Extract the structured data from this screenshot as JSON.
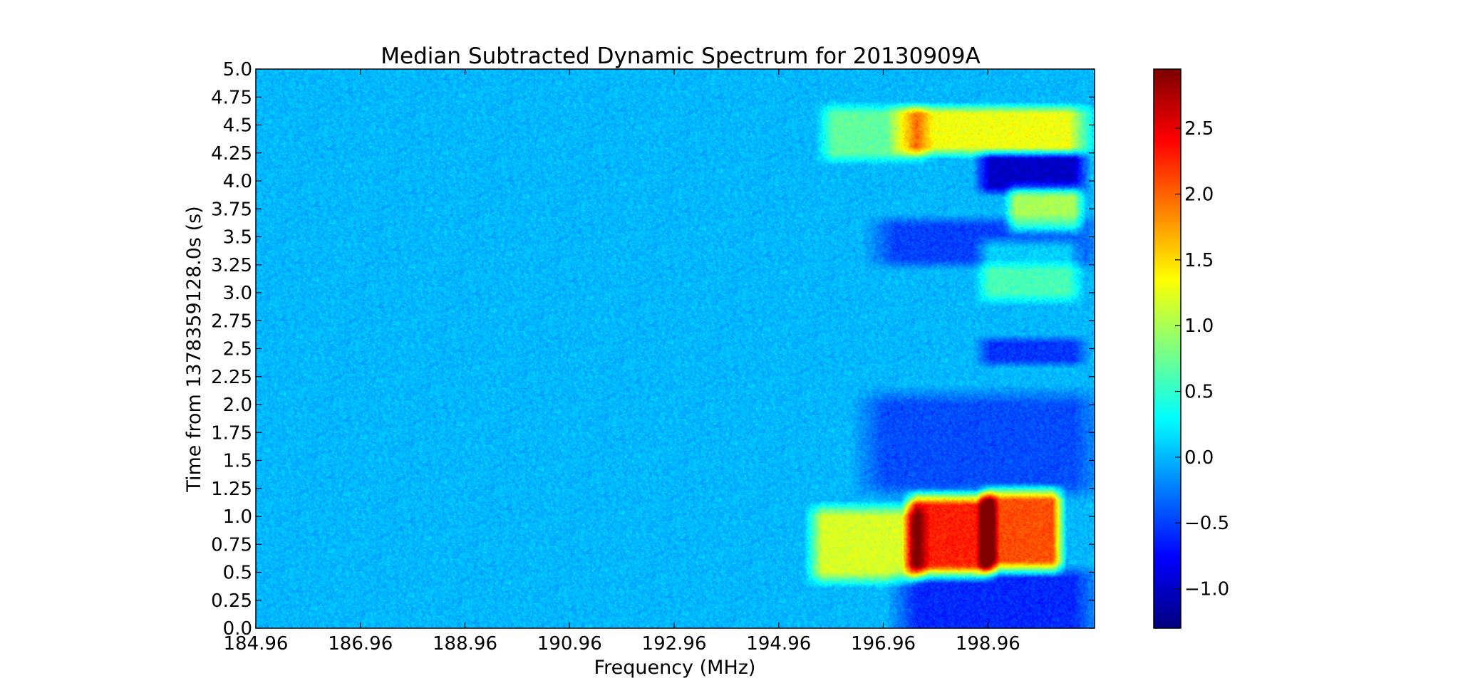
{
  "chart_data": {
    "type": "heatmap",
    "title": "Median Subtracted Dynamic Spectrum for 20130909A",
    "xlabel": "Frequency (MHz)",
    "ylabel": "Time from 1378359128.0s (s)",
    "xlim": [
      184.96,
      201.0
    ],
    "ylim": [
      0.0,
      5.0
    ],
    "x_ticks": [
      "184.96",
      "186.96",
      "188.96",
      "190.96",
      "192.96",
      "194.96",
      "196.96",
      "198.96"
    ],
    "x_tick_values": [
      184.96,
      186.96,
      188.96,
      190.96,
      192.96,
      194.96,
      196.96,
      198.96
    ],
    "y_ticks": [
      "0.0",
      "0.25",
      "0.5",
      "0.75",
      "1.0",
      "1.25",
      "1.5",
      "1.75",
      "2.0",
      "2.25",
      "2.5",
      "2.75",
      "3.0",
      "3.25",
      "3.5",
      "3.75",
      "4.0",
      "4.25",
      "4.5",
      "4.75",
      "5.0"
    ],
    "y_tick_values": [
      0.0,
      0.25,
      0.5,
      0.75,
      1.0,
      1.25,
      1.5,
      1.75,
      2.0,
      2.25,
      2.5,
      2.75,
      3.0,
      3.25,
      3.5,
      3.75,
      4.0,
      4.25,
      4.5,
      4.75,
      5.0
    ],
    "colorbar": {
      "colormap": "jet",
      "vmin": -1.3,
      "vmax": 2.95,
      "ticks": [
        "−1.0",
        "−0.5",
        "0.0",
        "0.5",
        "1.0",
        "1.5",
        "2.0",
        "2.5"
      ],
      "tick_values": [
        -1.0,
        -0.5,
        0.0,
        0.5,
        1.0,
        1.5,
        2.0,
        2.5
      ]
    },
    "background_level": 0.0,
    "features": [
      {
        "freq_range": [
          195.8,
          197.5
        ],
        "time_range": [
          0.5,
          1.0
        ],
        "peak": 1.2
      },
      {
        "freq_range": [
          197.6,
          198.9
        ],
        "time_range": [
          0.55,
          1.1
        ],
        "peak": 2.3
      },
      {
        "freq_range": [
          199.0,
          200.2
        ],
        "time_range": [
          0.6,
          1.15
        ],
        "peak": 2.1
      },
      {
        "freq_range": [
          196.0,
          197.6
        ],
        "time_range": [
          4.25,
          4.6
        ],
        "peak": 0.7
      },
      {
        "freq_range": [
          197.6,
          200.5
        ],
        "time_range": [
          4.3,
          4.6
        ],
        "peak": 1.3
      },
      {
        "freq_range": [
          199.0,
          200.5
        ],
        "time_range": [
          3.0,
          3.4
        ],
        "peak": 0.6
      },
      {
        "freq_range": [
          199.5,
          200.6
        ],
        "time_range": [
          3.6,
          3.9
        ],
        "peak": 1.0
      },
      {
        "freq_range": [
          197.6,
          200.6
        ],
        "time_range": [
          0.0,
          0.45
        ],
        "peak": -0.6
      },
      {
        "freq_range": [
          199.0,
          200.6
        ],
        "time_range": [
          3.95,
          4.2
        ],
        "peak": -1.0
      },
      {
        "freq_range": [
          197.0,
          200.6
        ],
        "time_range": [
          1.3,
          2.0
        ],
        "peak": -0.45
      },
      {
        "freq_range": [
          197.2,
          200.6
        ],
        "time_range": [
          3.3,
          3.6
        ],
        "peak": -0.5
      },
      {
        "freq_range": [
          199.0,
          200.6
        ],
        "time_range": [
          2.4,
          2.55
        ],
        "peak": -0.55
      }
    ]
  }
}
